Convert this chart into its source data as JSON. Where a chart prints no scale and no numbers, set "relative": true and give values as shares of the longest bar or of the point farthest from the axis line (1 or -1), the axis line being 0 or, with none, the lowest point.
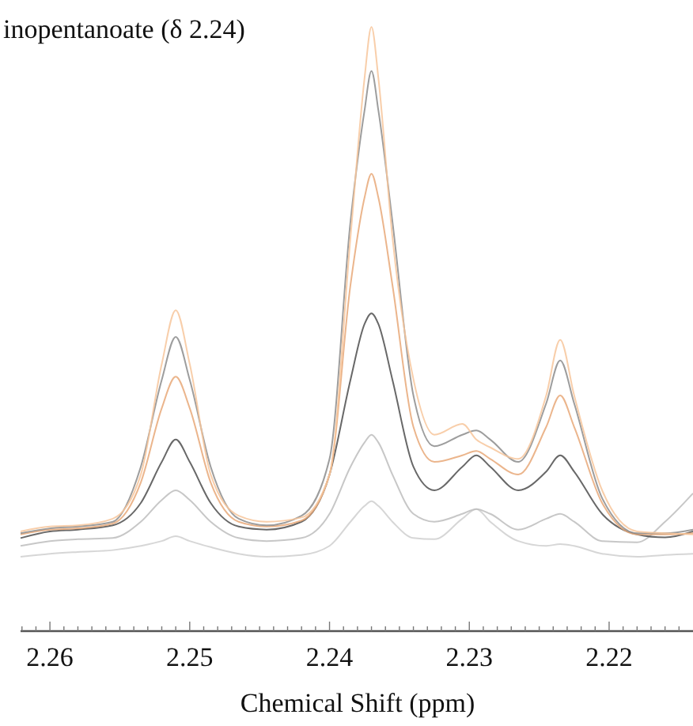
{
  "chart_data": {
    "type": "line",
    "title": "inopentanoate (δ 2.24)",
    "xlabel": "Chemical Shift (ppm)",
    "relative": true,
    "xlim": [
      2.2621,
      2.214
    ],
    "xticks": [
      {
        "value": 2.262,
        "label": null
      },
      {
        "value": 2.261,
        "label": null
      },
      2.26,
      {
        "value": 2.259,
        "label": null
      },
      {
        "value": 2.258,
        "label": null
      },
      {
        "value": 2.257,
        "label": null
      },
      {
        "value": 2.256,
        "label": null
      },
      {
        "value": 2.255,
        "label": null
      },
      {
        "value": 2.254,
        "label": null
      },
      {
        "value": 2.253,
        "label": null
      },
      {
        "value": 2.252,
        "label": null
      },
      {
        "value": 2.251,
        "label": null
      },
      2.25,
      {
        "value": 2.249,
        "label": null
      },
      {
        "value": 2.248,
        "label": null
      },
      {
        "value": 2.247,
        "label": null
      },
      {
        "value": 2.246,
        "label": null
      },
      {
        "value": 2.245,
        "label": null
      },
      {
        "value": 2.244,
        "label": null
      },
      {
        "value": 2.243,
        "label": null
      },
      {
        "value": 2.242,
        "label": null
      },
      {
        "value": 2.241,
        "label": null
      },
      2.24,
      {
        "value": 2.239,
        "label": null
      },
      {
        "value": 2.238,
        "label": null
      },
      {
        "value": 2.237,
        "label": null
      },
      {
        "value": 2.236,
        "label": null
      },
      {
        "value": 2.235,
        "label": null
      },
      {
        "value": 2.234,
        "label": null
      },
      {
        "value": 2.233,
        "label": null
      },
      {
        "value": 2.232,
        "label": null
      },
      {
        "value": 2.231,
        "label": null
      },
      2.23,
      {
        "value": 2.229,
        "label": null
      },
      {
        "value": 2.228,
        "label": null
      },
      {
        "value": 2.227,
        "label": null
      },
      {
        "value": 2.226,
        "label": null
      },
      {
        "value": 2.225,
        "label": null
      },
      {
        "value": 2.224,
        "label": null
      },
      {
        "value": 2.223,
        "label": null
      },
      {
        "value": 2.222,
        "label": null
      },
      {
        "value": 2.221,
        "label": null
      },
      2.22,
      {
        "value": 2.219,
        "label": null
      },
      {
        "value": 2.218,
        "label": null
      },
      {
        "value": 2.217,
        "label": null
      },
      {
        "value": 2.216,
        "label": null
      },
      {
        "value": 2.215,
        "label": null
      }
    ],
    "x": [
      2.2621,
      2.26,
      2.258,
      2.2555,
      2.2535,
      2.252,
      2.251,
      2.25,
      2.2485,
      2.2465,
      2.2445,
      2.242,
      2.24,
      2.2385,
      2.2375,
      2.237,
      2.2365,
      2.2355,
      2.234,
      2.2325,
      2.2305,
      2.2295,
      2.2285,
      2.2265,
      2.2245,
      2.2235,
      2.2225,
      2.2205,
      2.218,
      2.216,
      2.214
    ],
    "series": [
      {
        "color": "#cfcfcf",
        "values": [
          0.123,
          0.128,
          0.131,
          0.134,
          0.141,
          0.149,
          0.157,
          0.149,
          0.139,
          0.128,
          0.123,
          0.126,
          0.141,
          0.181,
          0.207,
          0.215,
          0.207,
          0.181,
          0.154,
          0.152,
          0.186,
          0.202,
          0.181,
          0.149,
          0.141,
          0.144,
          0.141,
          0.128,
          0.123,
          0.126,
          0.128
        ]
      },
      {
        "color": "#bdbdbd",
        "values": [
          0.141,
          0.149,
          0.152,
          0.154,
          0.181,
          0.217,
          0.233,
          0.217,
          0.181,
          0.154,
          0.149,
          0.154,
          0.194,
          0.272,
          0.312,
          0.325,
          0.312,
          0.259,
          0.194,
          0.181,
          0.194,
          0.202,
          0.194,
          0.168,
          0.186,
          0.194,
          0.181,
          0.149,
          0.147,
          0.181,
          0.228
        ]
      },
      {
        "color": "#4d4d4d",
        "values": [
          0.154,
          0.165,
          0.168,
          0.175,
          0.212,
          0.28,
          0.317,
          0.28,
          0.212,
          0.173,
          0.168,
          0.181,
          0.259,
          0.416,
          0.508,
          0.526,
          0.508,
          0.416,
          0.272,
          0.233,
          0.272,
          0.291,
          0.272,
          0.233,
          0.264,
          0.291,
          0.264,
          0.194,
          0.16,
          0.155,
          0.165
        ]
      },
      {
        "color": "#e8a878",
        "values": [
          0.16,
          0.168,
          0.17,
          0.178,
          0.246,
          0.369,
          0.421,
          0.369,
          0.246,
          0.181,
          0.173,
          0.183,
          0.259,
          0.573,
          0.717,
          0.757,
          0.717,
          0.573,
          0.338,
          0.28,
          0.291,
          0.298,
          0.285,
          0.259,
          0.338,
          0.39,
          0.338,
          0.212,
          0.16,
          0.16,
          0.162
        ]
      },
      {
        "color": "#8c8c8c",
        "values": [
          0.162,
          0.17,
          0.173,
          0.181,
          0.272,
          0.416,
          0.487,
          0.416,
          0.272,
          0.186,
          0.175,
          0.191,
          0.285,
          0.678,
          0.861,
          0.927,
          0.861,
          0.678,
          0.39,
          0.306,
          0.325,
          0.332,
          0.317,
          0.28,
          0.377,
          0.448,
          0.377,
          0.22,
          0.162,
          0.162,
          0.168
        ]
      },
      {
        "color": "#f7c69b",
        "values": [
          0.165,
          0.173,
          0.175,
          0.186,
          0.259,
          0.442,
          0.531,
          0.442,
          0.259,
          0.191,
          0.181,
          0.188,
          0.259,
          0.652,
          0.914,
          1,
          0.914,
          0.652,
          0.417,
          0.325,
          0.343,
          0.317,
          0.304,
          0.285,
          0.39,
          0.482,
          0.39,
          0.233,
          0.165,
          0.162,
          0.16
        ]
      }
    ]
  }
}
